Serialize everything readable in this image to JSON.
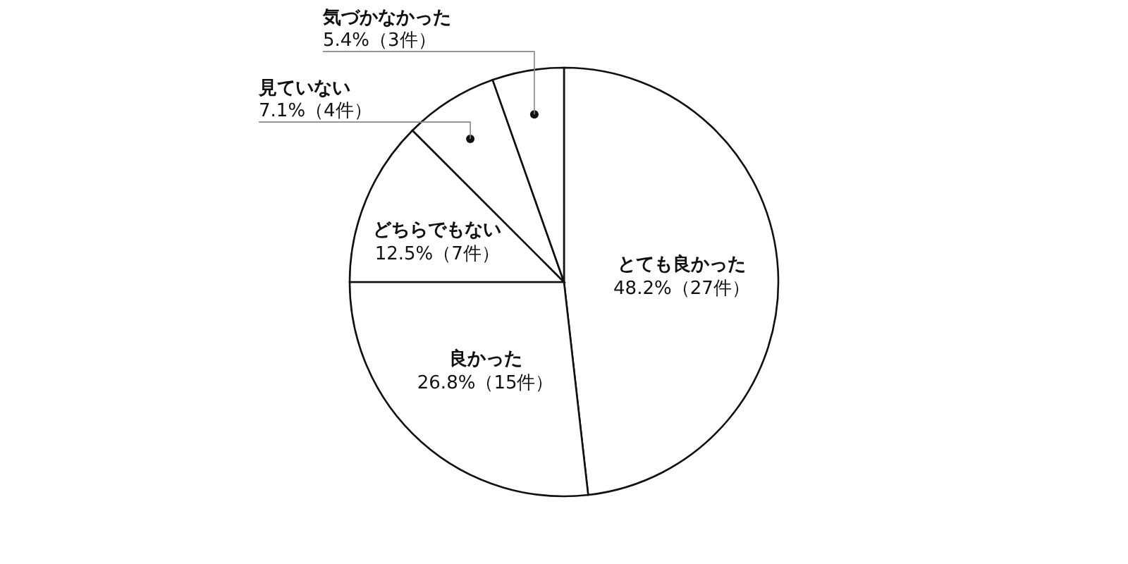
{
  "chart_data": {
    "type": "pie",
    "categories": [
      "とても良かった",
      "良かった",
      "どちらでもない",
      "見ていない",
      "気づかなかった"
    ],
    "values": [
      48.2,
      26.8,
      12.5,
      7.1,
      5.4
    ],
    "value_labels": [
      "48.2%（27件）",
      "26.8%（15件）",
      "12.5%（7件）",
      "7.1%（4件）",
      "5.4%（3件）"
    ],
    "colors": [
      "#ffffff",
      "#ffffff",
      "#ffffff",
      "#ffffff",
      "#ffffff"
    ],
    "legend": false
  }
}
